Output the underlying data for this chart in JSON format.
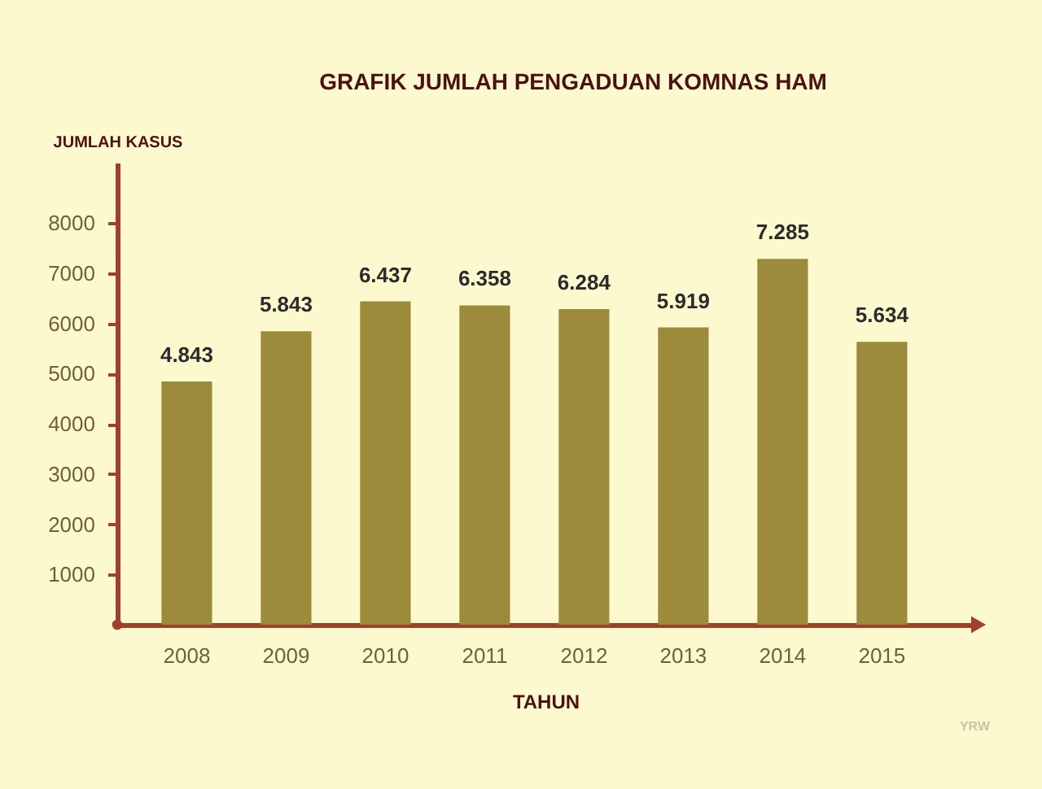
{
  "chart_data": {
    "type": "bar",
    "title": "GRAFIK JUMLAH PENGADUAN KOMNAS HAM",
    "xlabel": "TAHUN",
    "ylabel": "JUMLAH KASUS",
    "categories": [
      "2008",
      "2009",
      "2010",
      "2011",
      "2012",
      "2013",
      "2014",
      "2015"
    ],
    "values": [
      4843,
      5843,
      6437,
      6358,
      6284,
      5919,
      7285,
      5634
    ],
    "value_labels": [
      "4.843",
      "5.843",
      "6.437",
      "6.358",
      "6.284",
      "5.919",
      "7.285",
      "5.634"
    ],
    "color": "#9c8b3b",
    "ylim": [
      0,
      9200
    ],
    "yticks": [
      1000,
      2000,
      3000,
      4000,
      5000,
      6000,
      7000,
      8000
    ],
    "grid": false,
    "annotations": [
      "YRW"
    ]
  }
}
